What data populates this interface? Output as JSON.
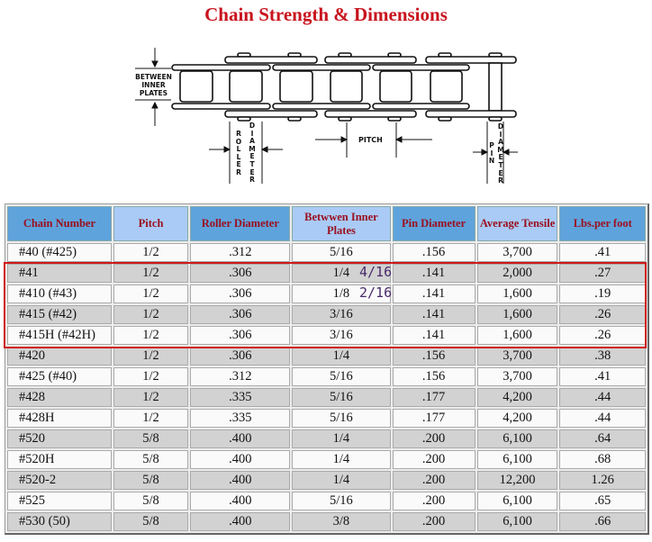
{
  "title": "Chain Strength & Dimensions",
  "diagram": {
    "between_inner_plates": "BETWEEN INNER PLATES",
    "roller": "ROLLER",
    "diameter": "DIAMETER",
    "pitch": "PITCH",
    "pin": "PIN"
  },
  "table": {
    "headers": [
      "Chain Number",
      "Pitch",
      "Roller Diameter",
      "Betwwen Inner Plates",
      "Pin Diameter",
      "Average Tensile",
      "Lbs.per foot"
    ],
    "header_colors": {
      "dark": "#5fa3dc",
      "light": "#a9cbf5",
      "text": "#9a1020"
    },
    "rows": [
      [
        "#40 (#425)",
        "1/2",
        ".312",
        "5/16",
        ".156",
        "3,700",
        ".41"
      ],
      [
        "#41",
        "1/2",
        ".306",
        "1/4",
        ".141",
        "2,000",
        ".27"
      ],
      [
        "#410 (#43)",
        "1/2",
        ".306",
        "1/8",
        ".141",
        "1,600",
        ".19"
      ],
      [
        "#415 (#42)",
        "1/2",
        ".306",
        "3/16",
        ".141",
        "1,600",
        ".26"
      ],
      [
        "#415H (#42H)",
        "1/2",
        ".306",
        "3/16",
        ".141",
        "1,600",
        ".26"
      ],
      [
        "#420",
        "1/2",
        ".306",
        "1/4",
        ".156",
        "3,700",
        ".38"
      ],
      [
        "#425 (#40)",
        "1/2",
        ".312",
        "5/16",
        ".156",
        "3,700",
        ".41"
      ],
      [
        "#428",
        "1/2",
        ".335",
        "5/16",
        ".177",
        "4,200",
        ".44"
      ],
      [
        "#428H",
        "1/2",
        ".335",
        "5/16",
        ".177",
        "4,200",
        ".44"
      ],
      [
        "#520",
        "5/8",
        ".400",
        "1/4",
        ".200",
        "6,100",
        ".64"
      ],
      [
        "#520H",
        "5/8",
        ".400",
        "1/4",
        ".200",
        "6,100",
        ".68"
      ],
      [
        "#520-2",
        "5/8",
        ".400",
        "1/4",
        ".200",
        "12,200",
        "1.26"
      ],
      [
        "#525",
        "5/8",
        ".400",
        "5/16",
        ".200",
        "6,100",
        ".65"
      ],
      [
        "#530 (50)",
        "5/8",
        ".400",
        "3/8",
        ".200",
        "6,100",
        ".66"
      ]
    ]
  },
  "highlight": {
    "color": "#d01818",
    "annotations": [
      "4/16",
      "2/16"
    ]
  }
}
